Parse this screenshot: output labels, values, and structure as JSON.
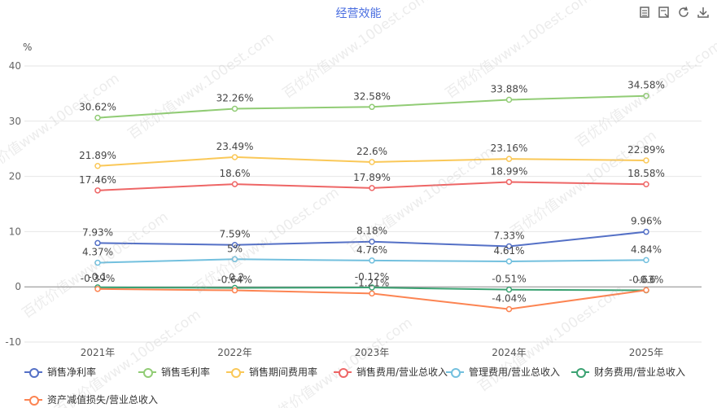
{
  "title": "经营效能",
  "toolbar": [
    {
      "name": "data-view-icon"
    },
    {
      "name": "restore-icon"
    },
    {
      "name": "refresh-icon"
    },
    {
      "name": "download-icon"
    }
  ],
  "watermark": "百优价值www.100est.com",
  "chart_data": {
    "type": "line",
    "ylabel": "%",
    "ylim": [
      -10,
      40
    ],
    "yticks": [
      "40",
      "30",
      "20",
      "10",
      "0",
      "-10"
    ],
    "categories": [
      "2021年",
      "2022年",
      "2023年",
      "2024年",
      "2025年"
    ],
    "grid": true,
    "legend_position": "bottom",
    "series": [
      {
        "name": "销售净利率",
        "color": "#5470c6",
        "values": [
          7.93,
          7.59,
          8.18,
          7.33,
          9.96
        ],
        "labels": [
          "7.93%",
          "7.59%",
          "8.18%",
          "7.33%",
          "9.96%"
        ]
      },
      {
        "name": "销售毛利率",
        "color": "#91cc75",
        "values": [
          30.62,
          32.26,
          32.58,
          33.88,
          34.58
        ],
        "labels": [
          "30.62%",
          "32.26%",
          "32.58%",
          "33.88%",
          "34.58%"
        ]
      },
      {
        "name": "销售期间费用率",
        "color": "#fac858",
        "values": [
          21.89,
          23.49,
          22.6,
          23.16,
          22.89
        ],
        "labels": [
          "21.89%",
          "23.49%",
          "22.6%",
          "23.16%",
          "22.89%"
        ]
      },
      {
        "name": "销售费用/营业总收入",
        "color": "#ee6666",
        "values": [
          17.46,
          18.6,
          17.89,
          18.99,
          18.58
        ],
        "labels": [
          "17.46%",
          "18.6%",
          "17.89%",
          "18.99%",
          "18.58%"
        ]
      },
      {
        "name": "管理费用/营业总收入",
        "color": "#73c0de",
        "values": [
          4.37,
          5,
          4.76,
          4.61,
          4.84
        ],
        "labels": [
          "4.37%",
          "5%",
          "4.76%",
          "4.61%",
          "4.84%"
        ]
      },
      {
        "name": "财务费用/营业总收入",
        "color": "#3ba272",
        "values": [
          -0.1,
          -0.2,
          -0.12,
          -0.51,
          -0.63
        ],
        "labels": [
          "-0.1",
          "-0.2",
          "-0.12%",
          "-0.51%",
          "-0.63%"
        ]
      },
      {
        "name": "资产减值损失/营业总收入",
        "color": "#fc8452",
        "values": [
          -0.39,
          -0.64,
          -1.21,
          -4.04,
          -0.6
        ],
        "labels": [
          "-0.39%",
          "-0.64%",
          "-1.21%",
          "-4.04%",
          "-0.6"
        ]
      }
    ]
  }
}
